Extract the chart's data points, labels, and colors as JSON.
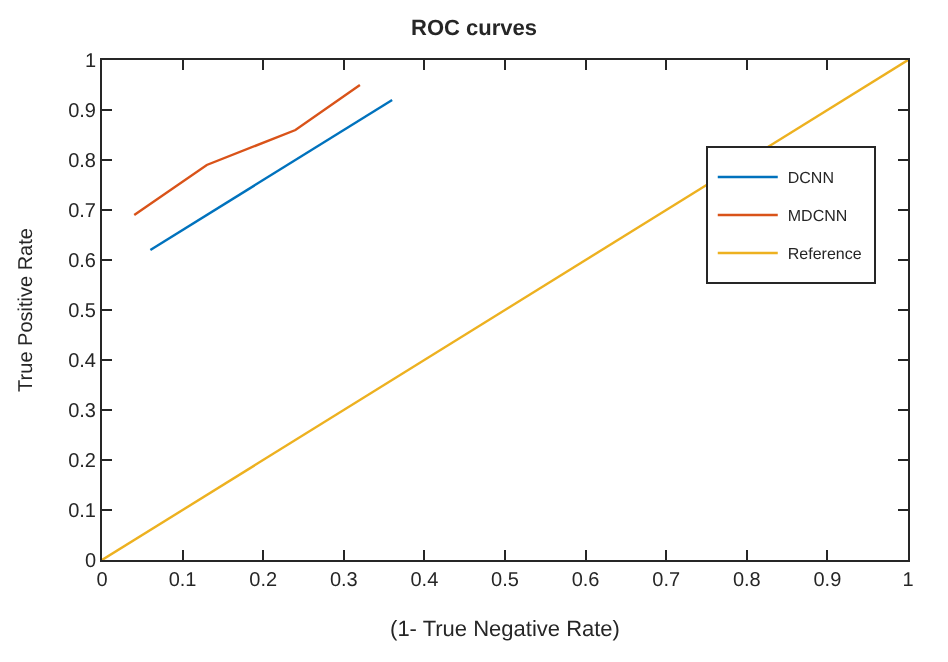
{
  "chart_data": {
    "type": "line",
    "title": "ROC curves",
    "xlabel": "(1- True Negative Rate)",
    "ylabel": "True Positive Rate",
    "series": [
      {
        "name": "DCNN",
        "color": "#0072bd",
        "x": [
          0.06,
          0.36
        ],
        "values": [
          0.62,
          0.92
        ]
      },
      {
        "name": "MDCNN",
        "color": "#d95319",
        "x": [
          0.04,
          0.13,
          0.24,
          0.32
        ],
        "values": [
          0.69,
          0.79,
          0.86,
          0.95
        ]
      },
      {
        "name": "Reference",
        "color": "#edb120",
        "x": [
          0,
          1
        ],
        "values": [
          0,
          1
        ]
      }
    ],
    "xlim": [
      0,
      1
    ],
    "ylim": [
      0,
      1
    ],
    "xticks": [
      0,
      0.1,
      0.2,
      0.3,
      0.4,
      0.5,
      0.6,
      0.7,
      0.8,
      0.9,
      1
    ],
    "yticks": [
      0,
      0.1,
      0.2,
      0.3,
      0.4,
      0.5,
      0.6,
      0.7,
      0.8,
      0.9,
      1
    ],
    "legend": "right",
    "marker": "none",
    "line_style": "solid"
  }
}
